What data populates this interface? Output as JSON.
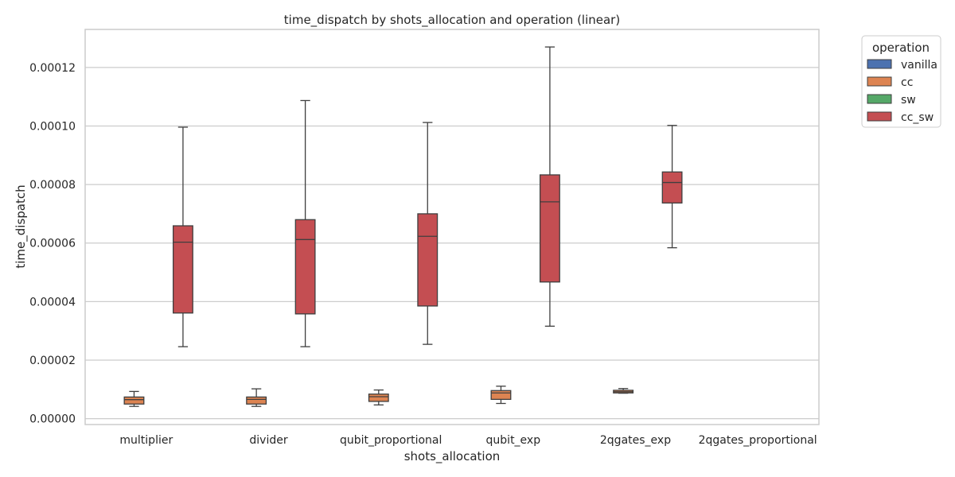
{
  "chart_data": {
    "type": "box",
    "title": "time_dispatch by shots_allocation and operation (linear)",
    "xlabel": "shots_allocation",
    "ylabel": "time_dispatch",
    "categories": [
      "multiplier",
      "divider",
      "qubit_proportional",
      "qubit_exp",
      "2qgates_exp",
      "2qgates_proportional"
    ],
    "ylim": [
      -2e-06,
      0.000133
    ],
    "yticks": [
      0,
      2e-05,
      4e-05,
      6e-05,
      8e-05,
      0.0001,
      0.00012
    ],
    "ytick_labels": [
      "0.00000",
      "0.00002",
      "0.00004",
      "0.00006",
      "0.00008",
      "0.00010",
      "0.00012"
    ],
    "grid": "horizontal",
    "legend": {
      "title": "operation",
      "position": "outside-top-right"
    },
    "series": [
      {
        "name": "vanilla",
        "color": "#4c72b0",
        "boxes": [
          null,
          null,
          null,
          null,
          null,
          null
        ]
      },
      {
        "name": "cc",
        "color": "#dd8452",
        "boxes": [
          {
            "whislo": 4.2e-06,
            "q1": 5e-06,
            "med": 6.5e-06,
            "q3": 7.4e-06,
            "whishi": 9.3e-06
          },
          {
            "whislo": 4.2e-06,
            "q1": 5e-06,
            "med": 6.6e-06,
            "q3": 7.4e-06,
            "whishi": 1.02e-05
          },
          {
            "whislo": 4.7e-06,
            "q1": 5.9e-06,
            "med": 7.5e-06,
            "q3": 8.4e-06,
            "whishi": 9.8e-06
          },
          {
            "whislo": 5.2e-06,
            "q1": 6.6e-06,
            "med": 8.8e-06,
            "q3": 9.6e-06,
            "whishi": 1.11e-05
          },
          {
            "whislo": 8.7e-06,
            "q1": 8.8e-06,
            "med": 9.2e-06,
            "q3": 9.7e-06,
            "whishi": 1.03e-05
          },
          null
        ]
      },
      {
        "name": "sw",
        "color": "#55a868",
        "boxes": [
          null,
          null,
          null,
          null,
          null,
          null
        ]
      },
      {
        "name": "cc_sw",
        "color": "#c44e52",
        "boxes": [
          {
            "whislo": 2.46e-05,
            "q1": 3.61e-05,
            "med": 6.03e-05,
            "q3": 6.59e-05,
            "whishi": 9.96e-05
          },
          {
            "whislo": 2.46e-05,
            "q1": 3.58e-05,
            "med": 6.12e-05,
            "q3": 6.8e-05,
            "whishi": 0.0001087
          },
          {
            "whislo": 2.54e-05,
            "q1": 3.85e-05,
            "med": 6.23e-05,
            "q3": 7e-05,
            "whishi": 0.0001012
          },
          {
            "whislo": 3.16e-05,
            "q1": 4.67e-05,
            "med": 7.41e-05,
            "q3": 8.33e-05,
            "whishi": 0.000127
          },
          {
            "whislo": 5.84e-05,
            "q1": 7.37e-05,
            "med": 8.07e-05,
            "q3": 8.43e-05,
            "whishi": 0.0001002
          },
          null
        ]
      }
    ]
  }
}
